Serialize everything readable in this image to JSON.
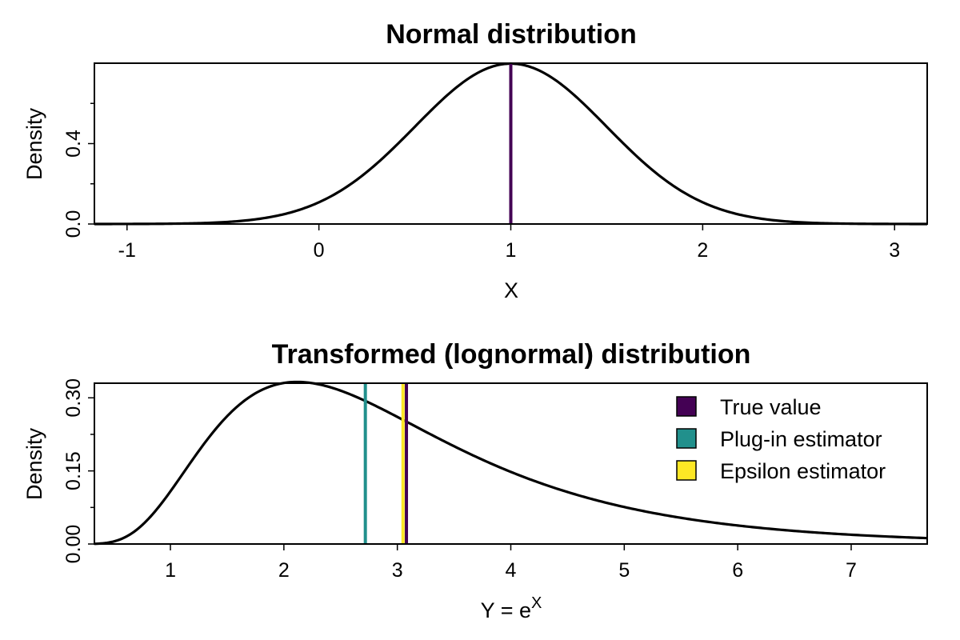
{
  "chart_data": [
    {
      "type": "line",
      "title": "Normal distribution",
      "xlabel": "X",
      "ylabel": "Density",
      "xlim": [
        -1.17,
        3.17
      ],
      "ylim": [
        0,
        0.8
      ],
      "x_ticks": [
        -1,
        0,
        1,
        2,
        3
      ],
      "x_tick_labels": [
        "-1",
        "0",
        "1",
        "2",
        "3"
      ],
      "y_ticks": [
        0.0,
        0.4
      ],
      "y_tick_labels": [
        "0.0",
        "0.4"
      ],
      "y_minor_ticks": [
        0.2,
        0.6
      ],
      "grid": false,
      "distribution": {
        "family": "normal",
        "mean": 1,
        "sd": 0.5
      },
      "series": [
        {
          "x": [
            -1.0,
            -0.75,
            -0.5,
            -0.25,
            0.0,
            0.25,
            0.5,
            0.75,
            1.0,
            1.25,
            1.5,
            1.75,
            2.0,
            2.25,
            2.5,
            2.75,
            3.0
          ],
          "values": [
            0.0003,
            0.0018,
            0.0089,
            0.035,
            0.108,
            0.259,
            0.4839,
            0.7041,
            0.7979,
            0.7041,
            0.4839,
            0.259,
            0.108,
            0.035,
            0.0089,
            0.0018,
            0.0003
          ],
          "color": "#000000"
        }
      ],
      "vlines": [
        {
          "x": 1.0,
          "color": "#440154",
          "label": "True value"
        }
      ]
    },
    {
      "type": "line",
      "title": "Transformed (lognormal) distribution",
      "xlabel": {
        "base": "Y = e",
        "superscript": "X"
      },
      "ylabel": "Density",
      "xlim": [
        0.33,
        7.67
      ],
      "ylim": [
        0,
        0.33
      ],
      "x_ticks": [
        1,
        2,
        3,
        4,
        5,
        6,
        7
      ],
      "x_tick_labels": [
        "1",
        "2",
        "3",
        "4",
        "5",
        "6",
        "7"
      ],
      "y_ticks": [
        0.0,
        0.15,
        0.3
      ],
      "y_tick_labels": [
        "0.00",
        "0.15",
        "0.30"
      ],
      "y_minor_ticks": [
        0.075,
        0.225
      ],
      "grid": false,
      "distribution": {
        "family": "lognormal",
        "meanlog": 1,
        "sdlog": 0.5
      },
      "series": [
        {
          "x": [
            0.4,
            0.6,
            0.8,
            1.0,
            1.2,
            1.5,
            1.8,
            2.1,
            2.4,
            2.8,
            3.2,
            3.6,
            4.0,
            4.5,
            5.0,
            5.5,
            6.0,
            6.5,
            7.0,
            7.67
          ],
          "values": [
            0.001,
            0.016,
            0.053,
            0.108,
            0.164,
            0.236,
            0.278,
            0.291,
            0.287,
            0.265,
            0.236,
            0.206,
            0.177,
            0.145,
            0.117,
            0.095,
            0.077,
            0.062,
            0.05,
            0.038
          ],
          "color": "#000000"
        }
      ],
      "vlines": [
        {
          "x": 3.08,
          "color": "#440154",
          "label": "True value"
        },
        {
          "x": 2.718,
          "color": "#21908C",
          "label": "Plug-in estimator"
        },
        {
          "x": 3.05,
          "color": "#FDE725",
          "label": "Epsilon estimator"
        }
      ],
      "legend": {
        "position": "top-right",
        "entries": [
          {
            "label": "True value",
            "color": "#440154"
          },
          {
            "label": "Plug-in estimator",
            "color": "#21908C"
          },
          {
            "label": "Epsilon estimator",
            "color": "#FDE725"
          }
        ]
      }
    }
  ]
}
